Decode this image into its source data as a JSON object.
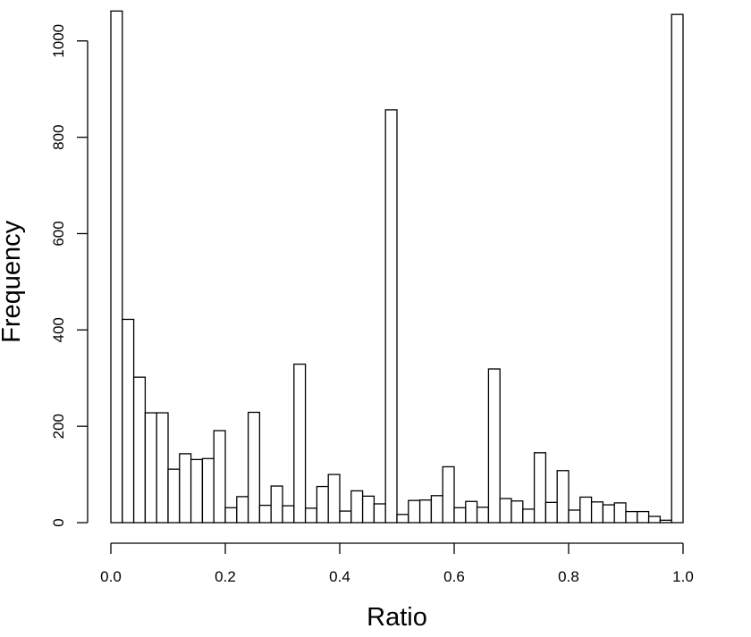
{
  "chart_data": {
    "type": "bar",
    "title": "",
    "xlabel": "Ratio",
    "ylabel": "Frequency",
    "bin_width": 0.02,
    "x_range": [
      0.0,
      1.0
    ],
    "ylim": [
      0,
      1062
    ],
    "x_ticks": [
      {
        "value": 0.0,
        "label": "0.0"
      },
      {
        "value": 0.2,
        "label": "0.2"
      },
      {
        "value": 0.4,
        "label": "0.4"
      },
      {
        "value": 0.6,
        "label": "0.6"
      },
      {
        "value": 0.8,
        "label": "0.8"
      },
      {
        "value": 1.0,
        "label": "1.0"
      }
    ],
    "y_ticks": [
      {
        "value": 0,
        "label": "0"
      },
      {
        "value": 200,
        "label": "200"
      },
      {
        "value": 400,
        "label": "400"
      },
      {
        "value": 600,
        "label": "600"
      },
      {
        "value": 800,
        "label": "800"
      },
      {
        "value": 1000,
        "label": "1000"
      }
    ],
    "grid": false,
    "values": [
      1062,
      422,
      302,
      228,
      228,
      111,
      143,
      131,
      133,
      191,
      31,
      54,
      229,
      36,
      76,
      35,
      329,
      30,
      75,
      100,
      24,
      66,
      55,
      39,
      857,
      17,
      46,
      47,
      56,
      116,
      31,
      44,
      32,
      319,
      50,
      45,
      28,
      145,
      42,
      108,
      26,
      53,
      43,
      37,
      41,
      23,
      23,
      13,
      5,
      1055
    ]
  }
}
